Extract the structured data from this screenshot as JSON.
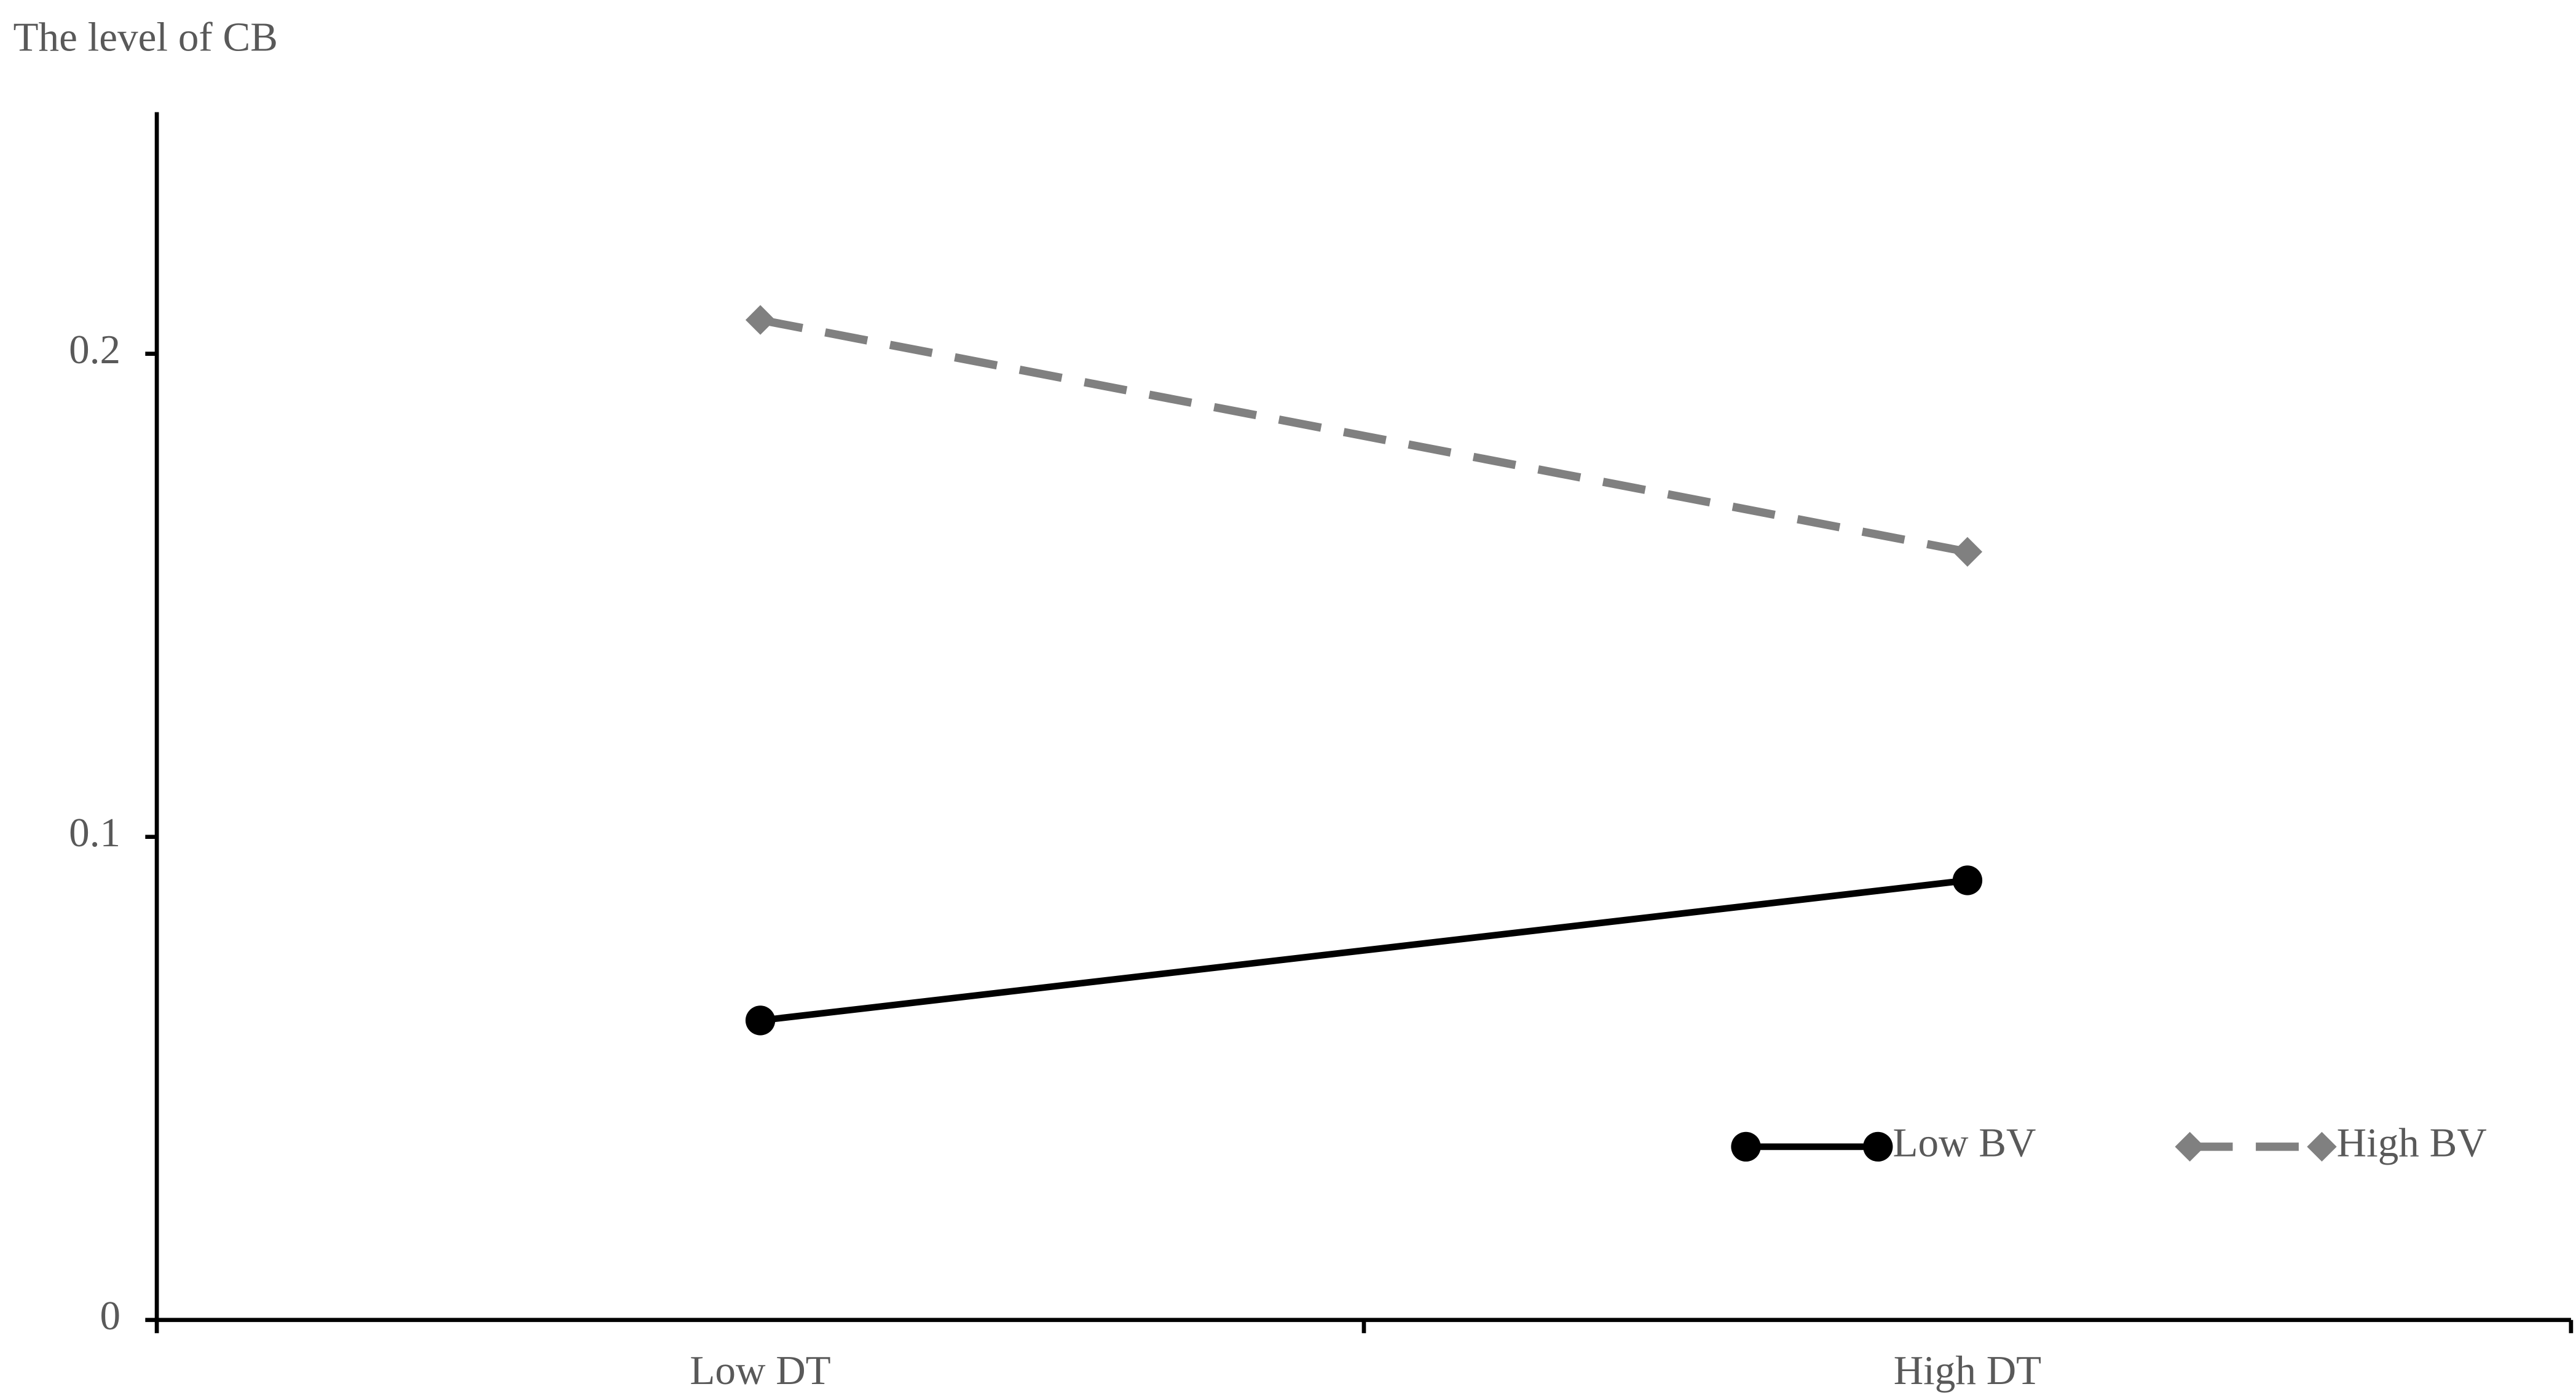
{
  "chart_data": {
    "type": "line",
    "y_label": "The level of CB",
    "categories": [
      "Low DT",
      "High DT"
    ],
    "series": [
      {
        "name": "Low BV",
        "color": "#000000",
        "marker": "circle",
        "dash": false,
        "values": [
          0.062,
          0.091
        ]
      },
      {
        "name": "High BV",
        "color": "#808080",
        "marker": "diamond",
        "dash": true,
        "values": [
          0.207,
          0.159
        ]
      }
    ],
    "ylim": [
      0,
      0.25
    ],
    "yticks": [
      0,
      0.1,
      0.2
    ],
    "grid": false,
    "legend": "lower right"
  }
}
